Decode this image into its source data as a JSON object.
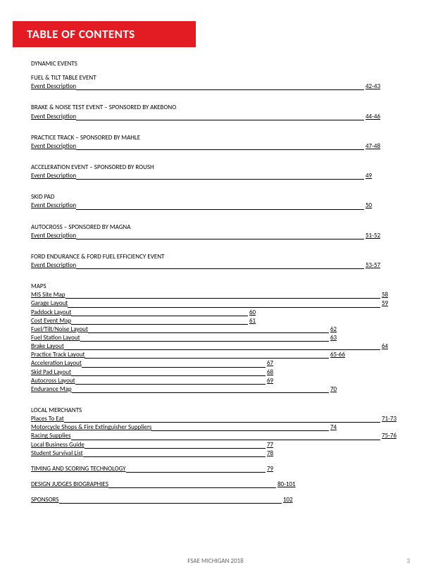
{
  "title": "TABLE OF CONTENTS",
  "footer": "FSAE MICHIGAN 2018",
  "page_number": "3",
  "colors": {
    "banner_bg": "#e31b23",
    "banner_text": "#ffffff",
    "text": "#000000",
    "footer": "#666666"
  },
  "sections": [
    {
      "type": "head",
      "text": "DYNAMIC EVENTS"
    },
    {
      "type": "head",
      "text": "FUEL & TILT TABLE EVENT"
    },
    {
      "type": "entry",
      "label": "Event Description",
      "page": "42-43",
      "w": "w90"
    },
    {
      "type": "gap"
    },
    {
      "type": "head",
      "text": "BRAKE & NOISE TEST EVENT – SPONSORED BY AKEBONO"
    },
    {
      "type": "entry",
      "label": "Event Description",
      "page": "44-46",
      "w": "w90"
    },
    {
      "type": "gap"
    },
    {
      "type": "head",
      "text": "PRACTICE TRACK – SPONSORED BY MAHLE"
    },
    {
      "type": "entry",
      "label": "Event Description",
      "page": "47-48",
      "w": "w90"
    },
    {
      "type": "gap"
    },
    {
      "type": "head",
      "text": "ACCELERATION EVENT – SPONSORED BY ROUSH"
    },
    {
      "type": "entry",
      "label": "Event Description",
      "page": "49",
      "w": "w90"
    },
    {
      "type": "gap"
    },
    {
      "type": "head",
      "text": "SKID PAD"
    },
    {
      "type": "entry",
      "label": "Event Description",
      "page": "50",
      "w": "w90"
    },
    {
      "type": "gap"
    },
    {
      "type": "head",
      "text": "AUTOCROSS – SPONSORED BY MAGNA"
    },
    {
      "type": "entry",
      "label": "Event Description",
      "page": "51-52",
      "w": "w90"
    },
    {
      "type": "gap"
    },
    {
      "type": "head",
      "text": "FORD ENDURANCE & FORD FUEL EFFICIENCY EVENT"
    },
    {
      "type": "entry",
      "label": "Event Description",
      "page": "53-57",
      "w": "w90"
    },
    {
      "type": "gap"
    },
    {
      "type": "head",
      "text": "MAPS"
    },
    {
      "type": "entry",
      "label": "MIS Site Map",
      "page": "58",
      "w": "w100"
    },
    {
      "type": "entry",
      "label": "Garage Layout",
      "page": "59",
      "w": "w100"
    },
    {
      "type": "entry",
      "label": "Paddock Layout",
      "page": "60",
      "w": "w60"
    },
    {
      "type": "entry",
      "label": "Cost Event Map",
      "page": "61",
      "w": "w60"
    },
    {
      "type": "entry",
      "label": "Fuel/Tilt/Noise Layout",
      "page": "62",
      "w": "w80"
    },
    {
      "type": "entry",
      "label": "Fuel Station Layout",
      "page": "63",
      "w": "w80"
    },
    {
      "type": "entry",
      "label": "Brake Layout",
      "page": "64",
      "w": "w100"
    },
    {
      "type": "entry",
      "label": "Practice Track Layout",
      "page": "65-66",
      "w": "w80"
    },
    {
      "type": "entry",
      "label": "Acceleration Layout",
      "page": "67",
      "w": "w66"
    },
    {
      "type": "entry",
      "label": "Skid Pad Layout",
      "page": "68",
      "w": "w66"
    },
    {
      "type": "entry",
      "label": "Autocross Layout",
      "page": "69",
      "w": "w66"
    },
    {
      "type": "entry",
      "label": "Endurance Map",
      "page": "70",
      "w": "w80"
    },
    {
      "type": "gap"
    },
    {
      "type": "head",
      "text": "LOCAL MERCHANTS"
    },
    {
      "type": "entry",
      "label": "Places To Eat",
      "page": "71-73",
      "w": "w100"
    },
    {
      "type": "entry",
      "label": "Motorcycle Shops & Fire Extinguisher Suppliers",
      "page": "74",
      "w": "w80"
    },
    {
      "type": "entry",
      "label": "Racing Supplies",
      "page": "75-76",
      "w": "w100"
    },
    {
      "type": "entry",
      "label": "Local Business Guide",
      "page": "77",
      "w": "w66"
    },
    {
      "type": "entry",
      "label": "Student Survival List",
      "page": "78",
      "w": "w66"
    },
    {
      "type": "gap"
    },
    {
      "type": "entry",
      "label": "TIMING AND SCORING TECHNOLOGY",
      "page": "79",
      "w": "w66"
    },
    {
      "type": "gap"
    },
    {
      "type": "entry",
      "label": "DESIGN JUDGES BIOGRAPHIES",
      "page": "80-101",
      "w": "w68"
    },
    {
      "type": "gap"
    },
    {
      "type": "entry",
      "label": "SPONSORS",
      "page": "102",
      "w": "w70"
    }
  ]
}
